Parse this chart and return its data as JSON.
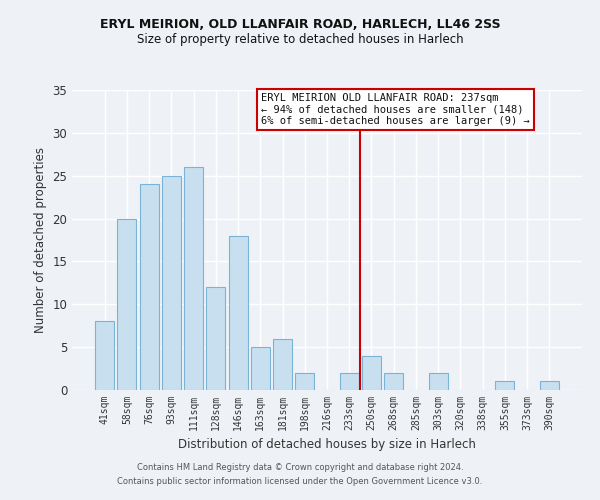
{
  "title_line1": "ERYL MEIRION, OLD LLANFAIR ROAD, HARLECH, LL46 2SS",
  "title_line2": "Size of property relative to detached houses in Harlech",
  "xlabel": "Distribution of detached houses by size in Harlech",
  "ylabel": "Number of detached properties",
  "bar_labels": [
    "41sqm",
    "58sqm",
    "76sqm",
    "93sqm",
    "111sqm",
    "128sqm",
    "146sqm",
    "163sqm",
    "181sqm",
    "198sqm",
    "216sqm",
    "233sqm",
    "250sqm",
    "268sqm",
    "285sqm",
    "303sqm",
    "320sqm",
    "338sqm",
    "355sqm",
    "373sqm",
    "390sqm"
  ],
  "bar_values": [
    8,
    20,
    24,
    25,
    26,
    12,
    18,
    5,
    6,
    2,
    0,
    2,
    4,
    2,
    0,
    2,
    0,
    0,
    1,
    0,
    1
  ],
  "bar_color": "#c8dff0",
  "bar_edge_color": "#7ab4d4",
  "vline_color": "#cc0000",
  "annotation_text": "ERYL MEIRION OLD LLANFAIR ROAD: 237sqm\n← 94% of detached houses are smaller (148)\n6% of semi-detached houses are larger (9) →",
  "ylim": [
    0,
    35
  ],
  "yticks": [
    0,
    5,
    10,
    15,
    20,
    25,
    30,
    35
  ],
  "footer_line1": "Contains HM Land Registry data © Crown copyright and database right 2024.",
  "footer_line2": "Contains public sector information licensed under the Open Government Licence v3.0.",
  "background_color": "#eef2f7"
}
